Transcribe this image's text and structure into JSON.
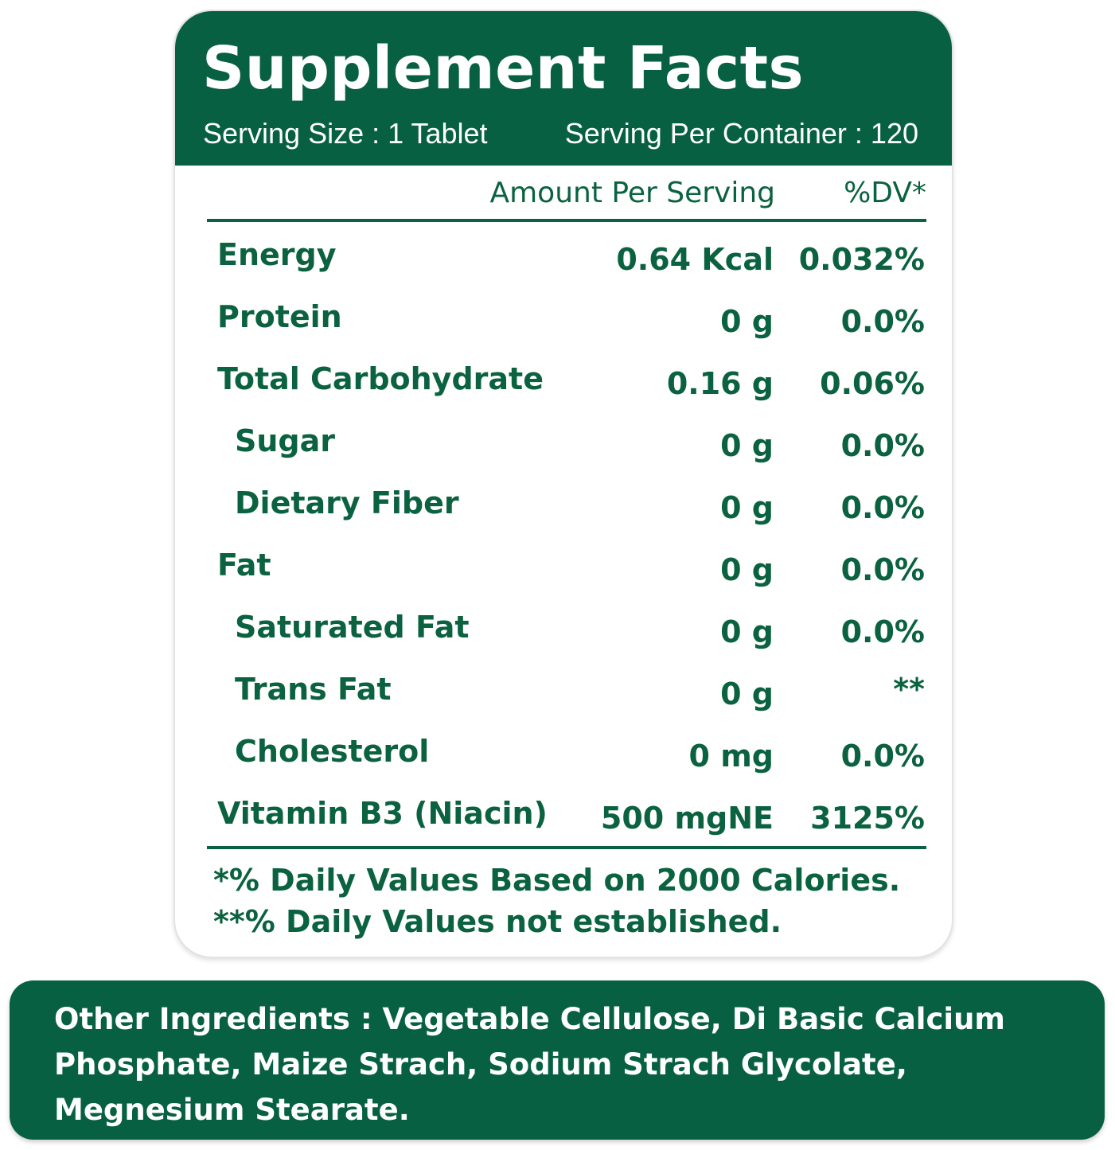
{
  "panel": {
    "title": "Supplement Facts",
    "serving_size": "Serving Size : 1 Tablet",
    "servings_per_container": "Serving Per Container : 120",
    "column_amount": "Amount Per Serving",
    "column_dv": "%DV*"
  },
  "rows": [
    {
      "name": "Energy",
      "amount": "0.64 Kcal",
      "dv": "0.032%"
    },
    {
      "name": "Protein",
      "amount": "0 g",
      "dv": "0.0%"
    },
    {
      "name": "Total Carbohydrate",
      "amount": "0.16 g",
      "dv": "0.06%"
    },
    {
      "name": "Sugar",
      "amount": "0 g",
      "dv": "0.0%"
    },
    {
      "name": "Dietary Fiber",
      "amount": "0 g",
      "dv": "0.0%"
    },
    {
      "name": "Fat",
      "amount": "0 g",
      "dv": "0.0%"
    },
    {
      "name": "Saturated Fat",
      "amount": "0 g",
      "dv": "0.0%"
    },
    {
      "name": "Trans Fat",
      "amount": "0 g",
      "dv": "**"
    },
    {
      "name": "Cholesterol",
      "amount": "0 mg",
      "dv": "0.0%"
    },
    {
      "name": "Vitamin B3 (Niacin)",
      "amount": "500 mgNE",
      "dv": "3125%"
    }
  ],
  "footnotes": [
    "*% Daily Values Based on 2000 Calories.",
    "**% Daily Values not established."
  ],
  "ingredients": {
    "label": "Other Ingredients : ",
    "text": "Vegetable Cellulose, Di Basic Calcium Phosphate, Maize Strach, Sodium Strach Glycolate, Megnesium Stearate."
  },
  "colors": {
    "brand_green": "#076042",
    "text_green": "#0b6240"
  }
}
